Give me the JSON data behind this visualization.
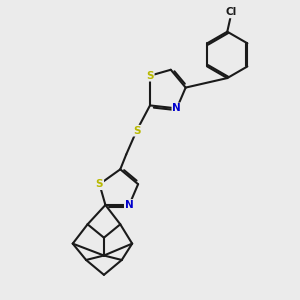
{
  "background_color": "#ebebeb",
  "bond_color": "#1a1a1a",
  "s_color": "#b8b800",
  "n_color": "#0000cc",
  "line_width": 1.5,
  "figsize": [
    3.0,
    3.0
  ],
  "dpi": 100,
  "xlim": [
    0,
    10
  ],
  "ylim": [
    0,
    10
  ]
}
